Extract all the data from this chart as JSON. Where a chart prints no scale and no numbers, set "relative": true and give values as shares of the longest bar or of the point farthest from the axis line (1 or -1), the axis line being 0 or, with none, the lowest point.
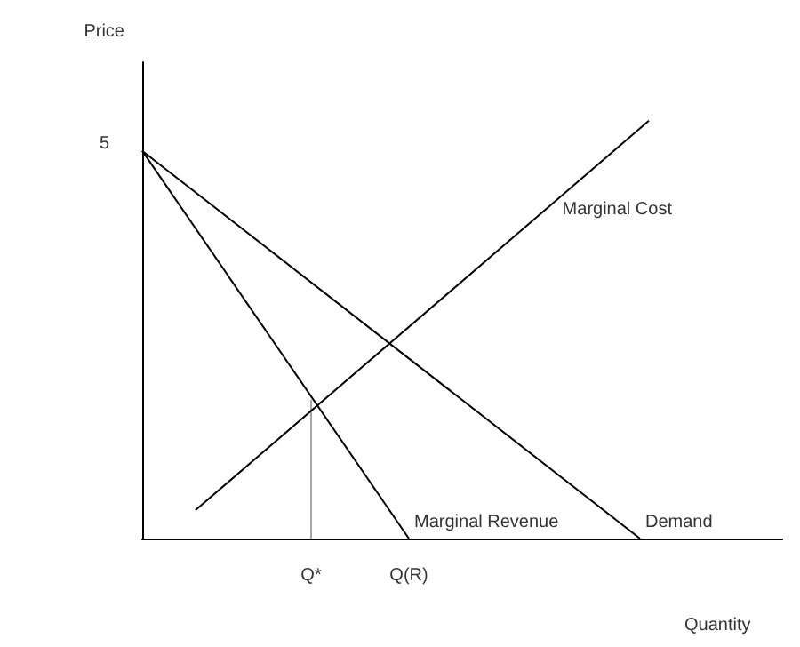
{
  "chart_data": {
    "type": "line",
    "xlabel": "Quantity",
    "ylabel": "Price",
    "relative": true,
    "categories": [
      null,
      null,
      null,
      null,
      null,
      null,
      null,
      null,
      null,
      null,
      null,
      null,
      null,
      null,
      null,
      null,
      null,
      null,
      null,
      "Q*",
      null,
      null,
      null,
      null,
      null,
      null,
      null,
      null,
      null,
      null,
      "Q(R)",
      null,
      null,
      null,
      null,
      null,
      null,
      null,
      null,
      null,
      null,
      null,
      null,
      null,
      null,
      null,
      null,
      null,
      null,
      null,
      null,
      null,
      null,
      null,
      null,
      null,
      null,
      null,
      null,
      null,
      null,
      null,
      null,
      null,
      null,
      null,
      null,
      null,
      null,
      null,
      null,
      null,
      null
    ],
    "annotations": [
      "5"
    ],
    "grid": false,
    "legend": false,
    "marker": "none",
    "line_style": "solid",
    "series": [
      {
        "name": "Demand",
        "color": "#000000",
        "values": [
          0.928,
          null,
          null,
          null,
          null,
          null,
          null,
          null,
          null,
          null,
          null,
          null,
          null,
          null,
          null,
          null,
          null,
          null,
          null,
          null,
          null,
          null,
          null,
          null,
          null,
          null,
          null,
          null,
          null,
          null,
          null,
          null,
          null,
          null,
          null,
          null,
          null,
          null,
          null,
          null,
          null,
          null,
          null,
          null,
          null,
          null,
          null,
          null,
          null,
          null,
          null,
          null,
          null,
          null,
          null,
          null,
          0,
          null,
          null,
          null,
          null,
          null,
          null,
          null,
          null,
          null,
          null,
          null,
          null,
          null,
          null,
          null,
          null
        ]
      },
      {
        "name": "Marginal Revenue",
        "color": "#000000",
        "values": [
          0.928,
          null,
          null,
          null,
          null,
          null,
          null,
          null,
          null,
          null,
          null,
          null,
          null,
          null,
          null,
          null,
          null,
          null,
          null,
          null,
          null,
          null,
          null,
          null,
          null,
          null,
          null,
          null,
          null,
          null,
          0,
          null,
          null,
          null,
          null,
          null,
          null,
          null,
          null,
          null,
          null,
          null,
          null,
          null,
          null,
          null,
          null,
          null,
          null,
          null,
          null,
          null,
          null,
          null,
          null,
          null,
          null,
          null,
          null,
          null,
          null,
          null,
          null,
          null,
          null,
          null,
          null,
          null,
          null,
          null,
          null,
          null,
          null
        ]
      },
      {
        "name": "Marginal Cost",
        "color": "#000000",
        "values": [
          null,
          null,
          null,
          null,
          null,
          null,
          0.068,
          null,
          null,
          null,
          null,
          null,
          null,
          null,
          null,
          null,
          null,
          null,
          null,
          null,
          null,
          null,
          null,
          null,
          null,
          null,
          null,
          null,
          null,
          null,
          null,
          null,
          null,
          null,
          null,
          null,
          null,
          null,
          null,
          null,
          null,
          null,
          null,
          null,
          null,
          null,
          null,
          null,
          null,
          null,
          null,
          null,
          null,
          null,
          null,
          null,
          null,
          1,
          null,
          null,
          null,
          null,
          null,
          null,
          null,
          null,
          null,
          null,
          null,
          null,
          null,
          null,
          null
        ]
      },
      {
        "type": "bar",
        "color": "#a6a6a6",
        "values": [
          null,
          null,
          null,
          null,
          null,
          null,
          null,
          null,
          null,
          null,
          null,
          null,
          null,
          null,
          null,
          null,
          null,
          null,
          null,
          0.332,
          null,
          null,
          null,
          null,
          null,
          null,
          null,
          null,
          null,
          null,
          null,
          null,
          null,
          null,
          null,
          null,
          null,
          null,
          null,
          null,
          null,
          null,
          null,
          null,
          null,
          null,
          null,
          null,
          null,
          null,
          null,
          null,
          null,
          null,
          null,
          null,
          null,
          null,
          null,
          null,
          null,
          null,
          null,
          null,
          null,
          null,
          null,
          null,
          null,
          null,
          null,
          null,
          null
        ]
      }
    ]
  }
}
